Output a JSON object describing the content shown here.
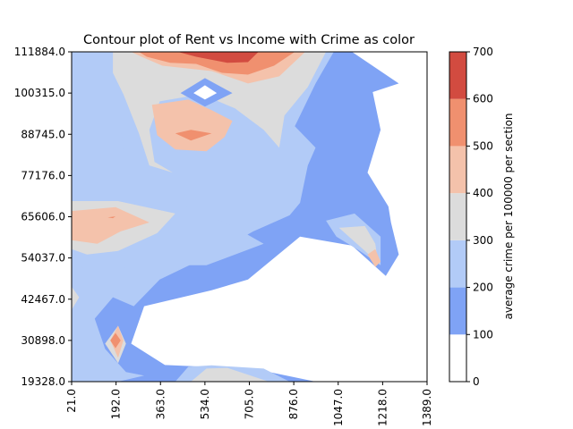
{
  "chart_data": {
    "type": "contour",
    "title": "Contour plot of Rent vs Income with Crime as color",
    "xlabel": "",
    "ylabel": "",
    "x_ticks": [
      "21.0",
      "192.0",
      "363.0",
      "534.0",
      "705.0",
      "876.0",
      "1047.0",
      "1218.0",
      "1389.0"
    ],
    "y_ticks": [
      "19328.0",
      "30898.0",
      "42467.0",
      "54037.0",
      "65606.0",
      "77176.0",
      "88745.0",
      "100315.0",
      "111884.0"
    ],
    "xlim": [
      21.0,
      1389.0
    ],
    "ylim": [
      19328.0,
      111884.0
    ],
    "colorbar": {
      "label": "average crime per 100000 per section",
      "levels": [
        0,
        100,
        200,
        300,
        400,
        500,
        600,
        700
      ],
      "level_labels": [
        "0",
        "100",
        "200",
        "300",
        "400",
        "500",
        "600",
        "700"
      ],
      "colors": [
        "#ffffff",
        "#7fa3f5",
        "#b2cbf7",
        "#dcdcdc",
        "#f4c2ab",
        "#f0906f",
        "#d24b40"
      ]
    },
    "levels_by_band": [
      {
        "x": 21.0,
        "y": [
          2,
          0,
          2,
          2,
          4,
          1,
          0,
          0,
          0
        ]
      },
      {
        "x": 192.0,
        "y": [
          1,
          5,
          1,
          2,
          5,
          1,
          1,
          0,
          3
        ]
      },
      {
        "x": 363.0,
        "y": [
          1,
          1,
          1,
          2,
          3,
          1,
          3,
          2,
          4
        ]
      },
      {
        "x": 534.0,
        "y": [
          2,
          0,
          1,
          1,
          2,
          2,
          4,
          0,
          5
        ]
      },
      {
        "x": 705.0,
        "y": [
          2,
          0,
          1,
          1,
          1,
          2,
          3,
          3,
          6
        ]
      },
      {
        "x": 876.0,
        "y": [
          1,
          0,
          1,
          1,
          1,
          2,
          1,
          2,
          3
        ]
      },
      {
        "x": 1047.0,
        "y": [
          0,
          0,
          0,
          1,
          1,
          1,
          1,
          1,
          2
        ]
      },
      {
        "x": 1218.0,
        "y": [
          0,
          0,
          0,
          2,
          2,
          1,
          1,
          1,
          1
        ]
      },
      {
        "x": 1389.0,
        "y": [
          0,
          0,
          0,
          1,
          0,
          0,
          0,
          0,
          0
        ]
      }
    ]
  }
}
